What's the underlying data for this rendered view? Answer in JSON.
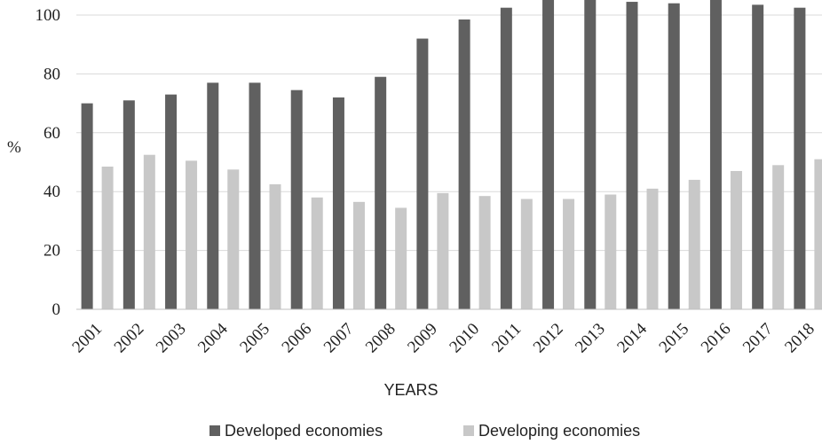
{
  "chart_data": {
    "type": "bar",
    "categories": [
      "2001",
      "2002",
      "2003",
      "2004",
      "2005",
      "2006",
      "2007",
      "2008",
      "2009",
      "2010",
      "2011",
      "2012",
      "2013",
      "2014",
      "2015",
      "2016",
      "2017",
      "2018"
    ],
    "series": [
      {
        "name": "Developed economies",
        "color": "#606060",
        "values": [
          70,
          71,
          73,
          77,
          77,
          74.5,
          72,
          79,
          92,
          98.5,
          102.5,
          106,
          106,
          104.5,
          104,
          106,
          103.5,
          102.5
        ]
      },
      {
        "name": "Developing economies",
        "color": "#c8c8c8",
        "values": [
          48.5,
          52.5,
          50.5,
          47.5,
          42.5,
          38,
          36.5,
          34.5,
          39.5,
          38.5,
          37.5,
          37.5,
          39,
          41,
          44,
          47,
          49,
          51
        ]
      }
    ],
    "yticks": [
      "0",
      "20",
      "40",
      "60",
      "80",
      "100"
    ],
    "ylim": [
      0,
      100
    ],
    "ylabel": "%",
    "xlabel": "YEARS",
    "grid": true,
    "legend": "bottom"
  }
}
